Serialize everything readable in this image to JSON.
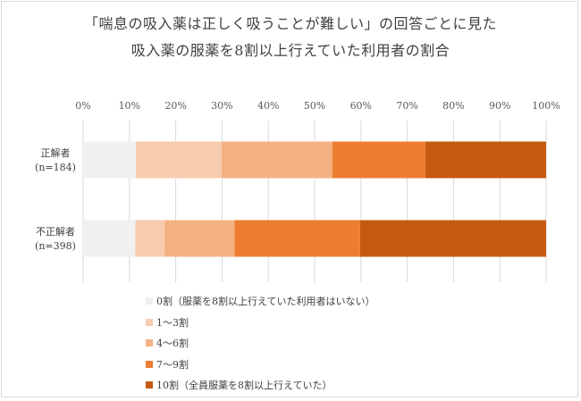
{
  "title": {
    "line1": "「喘息の吸入薬は正しく吸うことが難しい」の回答ごとに見た",
    "line2": "吸入薬の服薬を8割以上行えていた利用者の割合"
  },
  "colors": {
    "s0": "#f0f0f0",
    "s1": "#f8cbad",
    "s2": "#f4b183",
    "s3": "#ed7d31",
    "s4": "#c55a11",
    "grid": "#d9d9d9"
  },
  "chart_data": {
    "type": "bar",
    "orientation": "horizontal",
    "stacked": true,
    "xlim": [
      0,
      100
    ],
    "x_ticks": [
      "0%",
      "10%",
      "20%",
      "30%",
      "40%",
      "50%",
      "60%",
      "70%",
      "80%",
      "90%",
      "100%"
    ],
    "grid": true,
    "legend_position": "bottom",
    "categories": [
      {
        "line1": "正解者",
        "line2": "(n=184)"
      },
      {
        "line1": "不正解者",
        "line2": "(n=398)"
      }
    ],
    "series": [
      {
        "name": "0割（服薬を8割以上行えていた利用者はいない）",
        "color": "#f0f0f0",
        "values": [
          11.4,
          11.3
        ]
      },
      {
        "name": "1～3割",
        "color": "#f8cbad",
        "values": [
          18.5,
          6.3
        ]
      },
      {
        "name": "4～6割",
        "color": "#f4b183",
        "values": [
          23.9,
          15.1
        ]
      },
      {
        "name": "7～9割",
        "color": "#ed7d31",
        "values": [
          20.1,
          27.1
        ]
      },
      {
        "name": "10割（全員服薬を8割以上行えていた）",
        "color": "#c55a11",
        "values": [
          26.1,
          40.2
        ]
      }
    ]
  }
}
